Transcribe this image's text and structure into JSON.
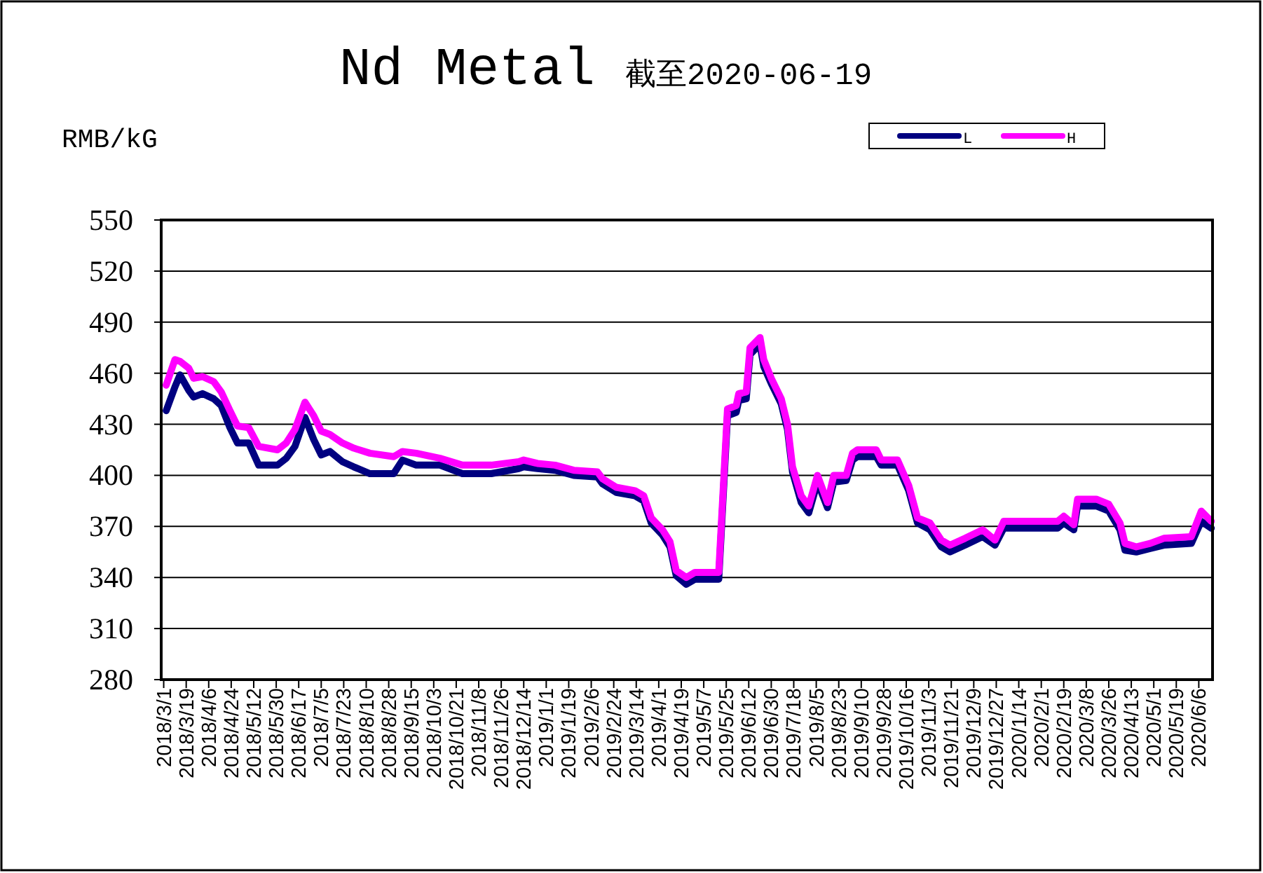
{
  "chart_data": {
    "type": "line",
    "title": "Nd Metal",
    "subtitle": "截至2020-06-19",
    "ylabel": "RMB/kG",
    "x": [
      "2018-03-03",
      "2018-03-10",
      "2018-03-14",
      "2018-03-21",
      "2018-03-25",
      "2018-04-01",
      "2018-04-10",
      "2018-04-16",
      "2018-04-23",
      "2018-04-29",
      "2018-05-08",
      "2018-05-16",
      "2018-05-31",
      "2018-06-07",
      "2018-06-14",
      "2018-06-22",
      "2018-06-29",
      "2018-07-05",
      "2018-07-12",
      "2018-07-22",
      "2018-07-31",
      "2018-08-13",
      "2018-09-01",
      "2018-09-08",
      "2018-09-19",
      "2018-10-08",
      "2018-10-26",
      "2018-11-18",
      "2018-12-10",
      "2018-12-14",
      "2018-12-25",
      "2019-01-08",
      "2019-01-23",
      "2019-02-11",
      "2019-02-15",
      "2019-02-26",
      "2019-03-13",
      "2019-03-20",
      "2019-03-26",
      "2019-04-04",
      "2019-04-10",
      "2019-04-15",
      "2019-04-23",
      "2019-04-30",
      "2019-05-19",
      "2019-05-26",
      "2019-06-02",
      "2019-06-04",
      "2019-06-10",
      "2019-06-13",
      "2019-06-21",
      "2019-06-24",
      "2019-06-30",
      "2019-07-08",
      "2019-07-13",
      "2019-07-17",
      "2019-07-24",
      "2019-07-30",
      "2019-08-06",
      "2019-08-14",
      "2019-08-19",
      "2019-08-29",
      "2019-09-03",
      "2019-09-07",
      "2019-09-22",
      "2019-09-26",
      "2019-10-09",
      "2019-10-18",
      "2019-10-25",
      "2019-11-04",
      "2019-11-13",
      "2019-11-20",
      "2019-12-02",
      "2019-12-16",
      "2019-12-26",
      "2020-01-02",
      "2020-02-14",
      "2020-02-19",
      "2020-02-27",
      "2020-03-01",
      "2020-03-16",
      "2020-03-26",
      "2020-04-04",
      "2020-04-08",
      "2020-04-17",
      "2020-04-28",
      "2020-05-09",
      "2020-05-31",
      "2020-06-08",
      "2020-06-16"
    ],
    "series": [
      {
        "name": "L",
        "color": "#000080",
        "values": [
          438,
          452,
          459,
          450,
          446,
          448,
          445,
          441,
          428,
          419,
          419,
          406,
          406,
          410,
          417,
          434,
          421,
          412,
          414,
          408,
          405,
          401,
          401,
          409,
          406,
          406,
          401,
          401,
          404,
          405,
          404,
          403,
          400,
          399,
          395,
          390,
          388,
          385,
          372,
          365,
          358,
          341,
          336,
          339,
          339,
          435,
          437,
          444,
          445,
          471,
          477,
          464,
          454,
          442,
          427,
          402,
          384,
          378,
          396,
          381,
          396,
          397,
          409,
          411,
          411,
          406,
          406,
          391,
          372,
          368,
          358,
          355,
          359,
          364,
          359,
          369,
          369,
          372,
          368,
          382,
          382,
          379,
          368,
          356,
          355,
          357,
          359,
          360,
          373,
          369
        ]
      },
      {
        "name": "H",
        "color": "#ff00ff",
        "values": [
          453,
          468,
          467,
          463,
          457,
          458,
          455,
          449,
          438,
          429,
          428,
          417,
          415,
          419,
          427,
          443,
          435,
          426,
          424,
          419,
          416,
          413,
          411,
          414,
          413,
          410,
          406,
          406,
          408,
          409,
          407,
          406,
          403,
          402,
          398,
          393,
          391,
          388,
          375,
          368,
          361,
          344,
          340,
          343,
          343,
          439,
          441,
          448,
          449,
          475,
          481,
          468,
          457,
          445,
          430,
          405,
          388,
          382,
          400,
          384,
          400,
          400,
          413,
          415,
          415,
          409,
          409,
          394,
          375,
          372,
          362,
          359,
          363,
          368,
          362,
          373,
          373,
          376,
          371,
          386,
          386,
          383,
          372,
          360,
          358,
          360,
          363,
          364,
          379,
          373
        ]
      }
    ],
    "xlim": [
      "2018-02-27",
      "2020-06-17"
    ],
    "xticks": [
      {
        "value": "2018-03-01",
        "label": "2018/3/1"
      },
      {
        "value": "2018-03-19",
        "label": "2018/3/19"
      },
      {
        "value": "2018-04-06",
        "label": "2018/4/6"
      },
      {
        "value": "2018-04-24",
        "label": "2018/4/24"
      },
      {
        "value": "2018-05-12",
        "label": "2018/5/12"
      },
      {
        "value": "2018-05-30",
        "label": "2018/5/30"
      },
      {
        "value": "2018-06-17",
        "label": "2018/6/17"
      },
      {
        "value": "2018-07-05",
        "label": "2018/7/5"
      },
      {
        "value": "2018-07-23",
        "label": "2018/7/23"
      },
      {
        "value": "2018-08-10",
        "label": "2018/8/10"
      },
      {
        "value": "2018-08-28",
        "label": "2018/8/28"
      },
      {
        "value": "2018-09-15",
        "label": "2018/9/15"
      },
      {
        "value": "2018-10-03",
        "label": "2018/10/3"
      },
      {
        "value": "2018-10-21",
        "label": "2018/10/21"
      },
      {
        "value": "2018-11-08",
        "label": "2018/11/8"
      },
      {
        "value": "2018-11-26",
        "label": "2018/11/26"
      },
      {
        "value": "2018-12-14",
        "label": "2018/12/14"
      },
      {
        "value": "2019-01-01",
        "label": "2019/1/1"
      },
      {
        "value": "2019-01-19",
        "label": "2019/1/19"
      },
      {
        "value": "2019-02-06",
        "label": "2019/2/6"
      },
      {
        "value": "2019-02-24",
        "label": "2019/2/24"
      },
      {
        "value": "2019-03-14",
        "label": "2019/3/14"
      },
      {
        "value": "2019-04-01",
        "label": "2019/4/1"
      },
      {
        "value": "2019-04-19",
        "label": "2019/4/19"
      },
      {
        "value": "2019-05-07",
        "label": "2019/5/7"
      },
      {
        "value": "2019-05-25",
        "label": "2019/5/25"
      },
      {
        "value": "2019-06-12",
        "label": "2019/6/12"
      },
      {
        "value": "2019-06-30",
        "label": "2019/6/30"
      },
      {
        "value": "2019-07-18",
        "label": "2019/7/18"
      },
      {
        "value": "2019-08-05",
        "label": "2019/8/5"
      },
      {
        "value": "2019-08-23",
        "label": "2019/8/23"
      },
      {
        "value": "2019-09-10",
        "label": "2019/9/10"
      },
      {
        "value": "2019-09-28",
        "label": "2019/9/28"
      },
      {
        "value": "2019-10-16",
        "label": "2019/10/16"
      },
      {
        "value": "2019-11-03",
        "label": "2019/11/3"
      },
      {
        "value": "2019-11-21",
        "label": "2019/11/21"
      },
      {
        "value": "2019-12-09",
        "label": "2019/12/9"
      },
      {
        "value": "2019-12-27",
        "label": "2019/12/27"
      },
      {
        "value": "2020-01-14",
        "label": "2020/1/14"
      },
      {
        "value": "2020-02-01",
        "label": "2020/2/1"
      },
      {
        "value": "2020-02-19",
        "label": "2020/2/19"
      },
      {
        "value": "2020-03-08",
        "label": "2020/3/8"
      },
      {
        "value": "2020-03-26",
        "label": "2020/3/26"
      },
      {
        "value": "2020-04-13",
        "label": "2020/4/13"
      },
      {
        "value": "2020-05-01",
        "label": "2020/5/1"
      },
      {
        "value": "2020-05-19",
        "label": "2020/5/19"
      },
      {
        "value": "2020-06-06",
        "label": "2020/6/6"
      }
    ],
    "ylim": [
      280,
      550
    ],
    "yticks": [
      280,
      310,
      340,
      370,
      400,
      430,
      460,
      490,
      520,
      550
    ],
    "grid": "y",
    "legend": "top right",
    "marker": "none",
    "line_style": "solid"
  }
}
